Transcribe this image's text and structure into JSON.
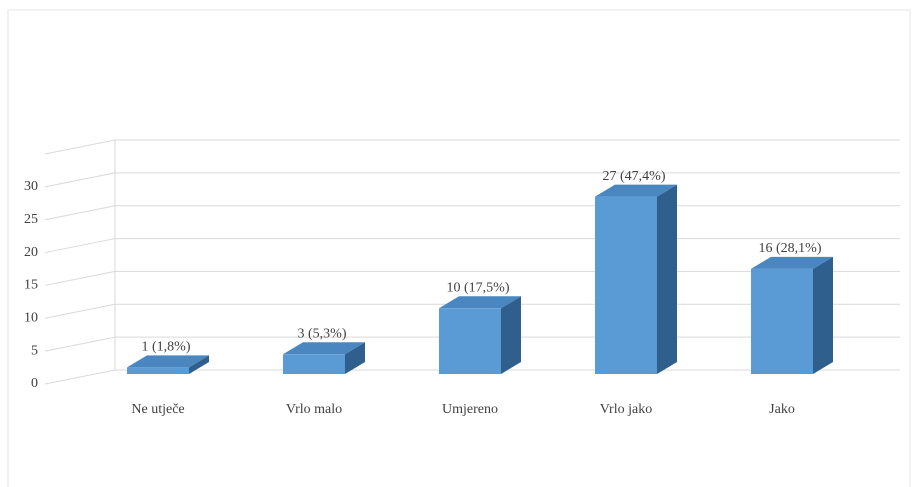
{
  "chart_data": {
    "type": "bar3d",
    "categories": [
      "Ne utječe",
      "Vrlo malo",
      "Umjereno",
      "Vrlo jako",
      "Jako"
    ],
    "values": [
      1,
      3,
      10,
      27,
      16
    ],
    "value_labels": [
      "1 (1,8%)",
      "3 (5,3%)",
      "10 (17,5%)",
      "27 (47,4%)",
      "16 (28,1%)"
    ],
    "color": "#5b9bd5",
    "ylim": [
      0,
      35
    ],
    "yticks": [
      0,
      5,
      10,
      15,
      20,
      25,
      30
    ],
    "grid": true
  }
}
